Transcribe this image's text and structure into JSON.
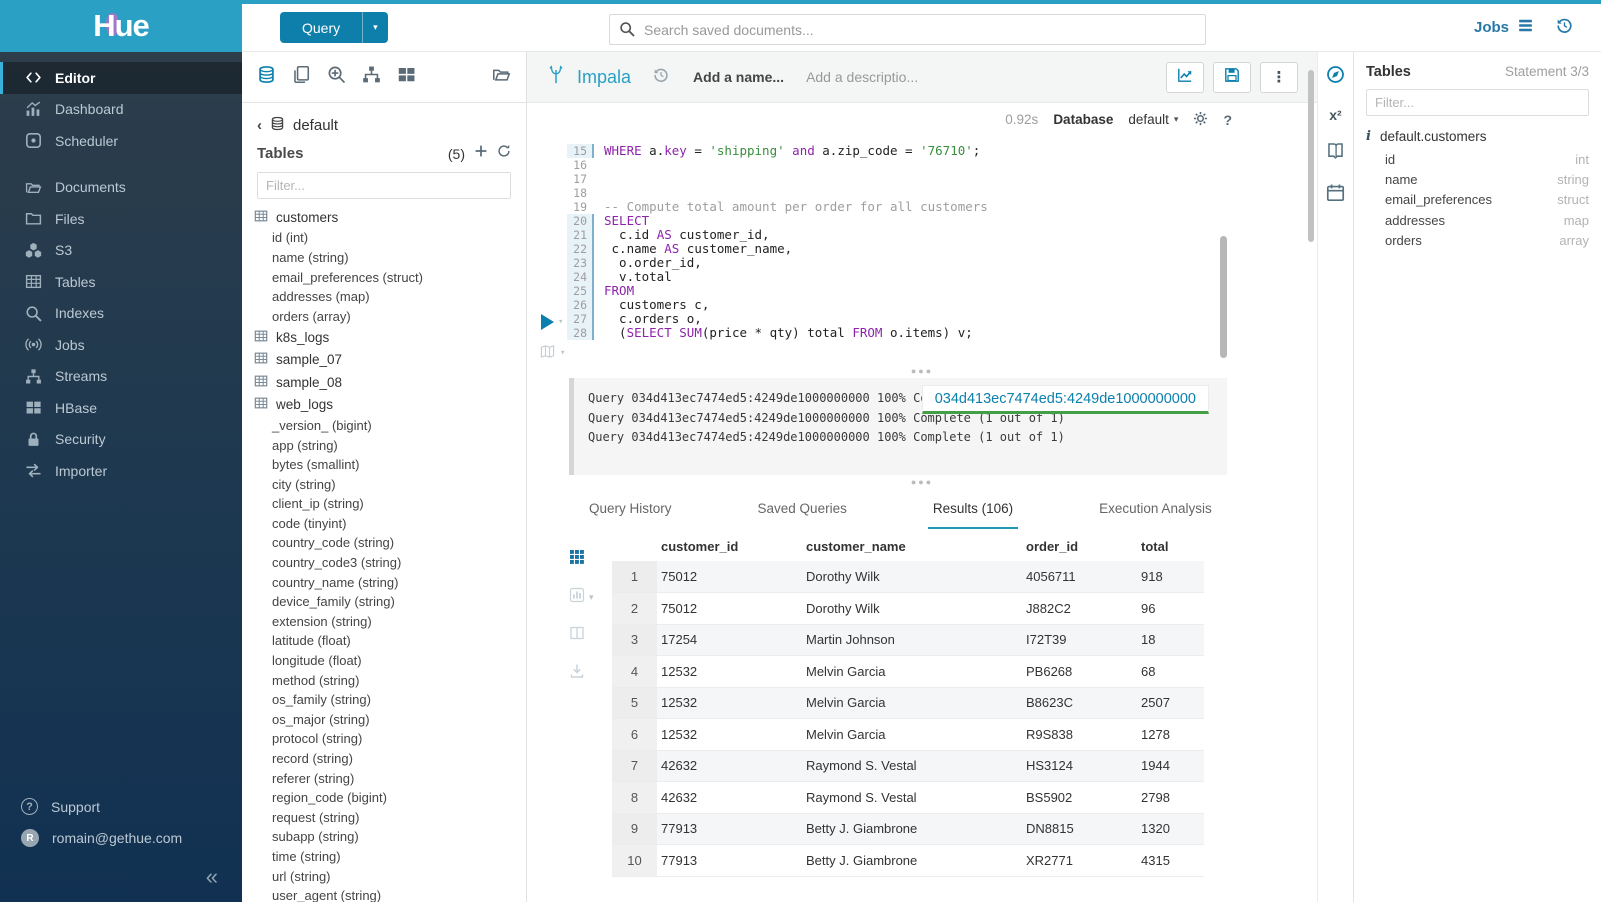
{
  "sidebar": {
    "logo_text": "Hue",
    "items": [
      {
        "label": "Editor",
        "icon": "code-icon",
        "active": true,
        "section": false
      },
      {
        "label": "Dashboard",
        "icon": "dashboard-icon",
        "active": false,
        "section": false
      },
      {
        "label": "Scheduler",
        "icon": "scheduler-icon",
        "active": false,
        "section": false
      },
      {
        "label": "Documents",
        "icon": "documents-icon",
        "active": false,
        "section": true
      },
      {
        "label": "Files",
        "icon": "files-icon",
        "active": false,
        "section": false
      },
      {
        "label": "S3",
        "icon": "s3-icon",
        "active": false,
        "section": false
      },
      {
        "label": "Tables",
        "icon": "tables-icon",
        "active": false,
        "section": false
      },
      {
        "label": "Indexes",
        "icon": "indexes-icon",
        "active": false,
        "section": false
      },
      {
        "label": "Jobs",
        "icon": "jobs-icon",
        "active": false,
        "section": false
      },
      {
        "label": "Streams",
        "icon": "streams-icon",
        "active": false,
        "section": false
      },
      {
        "label": "HBase",
        "icon": "hbase-icon",
        "active": false,
        "section": false
      },
      {
        "label": "Security",
        "icon": "security-icon",
        "active": false,
        "section": false
      },
      {
        "label": "Importer",
        "icon": "importer-icon",
        "active": false,
        "section": false
      }
    ],
    "footer": [
      {
        "label": "Support"
      },
      {
        "label": "romain@gethue.com",
        "avatar_letter": "R"
      }
    ]
  },
  "topbar": {
    "query_button": "Query",
    "search_placeholder": "Search saved documents...",
    "jobs_label": "Jobs"
  },
  "db_panel": {
    "breadcrumb": "default",
    "tables_label": "Tables",
    "count": "(5)",
    "filter_placeholder": "Filter...",
    "tables": [
      {
        "name": "customers",
        "columns": [
          "id (int)",
          "name (string)",
          "email_preferences (struct)",
          "addresses (map)",
          "orders (array)"
        ]
      },
      {
        "name": "k8s_logs",
        "columns": []
      },
      {
        "name": "sample_07",
        "columns": []
      },
      {
        "name": "sample_08",
        "columns": []
      },
      {
        "name": "web_logs",
        "columns": [
          "_version_ (bigint)",
          "app (string)",
          "bytes (smallint)",
          "city (string)",
          "client_ip (string)",
          "code (tinyint)",
          "country_code (string)",
          "country_code3 (string)",
          "country_name (string)",
          "device_family (string)",
          "extension (string)",
          "latitude (float)",
          "longitude (float)",
          "method (string)",
          "os_family (string)",
          "os_major (string)",
          "protocol (string)",
          "record (string)",
          "referer (string)",
          "region_code (bigint)",
          "request (string)",
          "subapp (string)",
          "time (string)",
          "url (string)",
          "user_agent (string)"
        ]
      }
    ]
  },
  "editor": {
    "engine": "Impala",
    "name_placeholder": "Add a name...",
    "description_placeholder": "Add a descriptio...",
    "exec_time": "0.92s",
    "database_label": "Database",
    "database_value": "default",
    "code": [
      {
        "n": "15",
        "stmt": true,
        "tokens": [
          [
            "kw",
            "WHERE"
          ],
          [
            "pl",
            " a."
          ],
          [
            "kw",
            "key"
          ],
          [
            "pl",
            " = "
          ],
          [
            "str",
            "'shipping'"
          ],
          [
            "kw",
            " and"
          ],
          [
            "pl",
            " a.zip_code = "
          ],
          [
            "str",
            "'76710'"
          ],
          [
            "pl",
            ";"
          ]
        ]
      },
      {
        "n": "16",
        "stmt": false,
        "tokens": []
      },
      {
        "n": "17",
        "stmt": false,
        "tokens": []
      },
      {
        "n": "18",
        "stmt": false,
        "tokens": []
      },
      {
        "n": "19",
        "stmt": false,
        "tokens": [
          [
            "cmt",
            "-- Compute total amount per order for all customers"
          ]
        ]
      },
      {
        "n": "20",
        "stmt": true,
        "tokens": [
          [
            "kw",
            "SELECT"
          ]
        ]
      },
      {
        "n": "21",
        "stmt": true,
        "tokens": [
          [
            "pl",
            "  c.id "
          ],
          [
            "kw",
            "AS"
          ],
          [
            "pl",
            " customer_id,"
          ]
        ]
      },
      {
        "n": "22",
        "stmt": true,
        "tokens": [
          [
            "pl",
            " c.name "
          ],
          [
            "kw",
            "AS"
          ],
          [
            "pl",
            " customer_name,"
          ]
        ]
      },
      {
        "n": "23",
        "stmt": true,
        "tokens": [
          [
            "pl",
            "  o.order_id,"
          ]
        ]
      },
      {
        "n": "24",
        "stmt": true,
        "tokens": [
          [
            "pl",
            "  v.total"
          ]
        ]
      },
      {
        "n": "25",
        "stmt": true,
        "tokens": [
          [
            "kw",
            "FROM"
          ]
        ]
      },
      {
        "n": "26",
        "stmt": true,
        "tokens": [
          [
            "pl",
            "  customers c,"
          ]
        ]
      },
      {
        "n": "27",
        "stmt": true,
        "tokens": [
          [
            "pl",
            "  c.orders o,"
          ]
        ]
      },
      {
        "n": "28",
        "stmt": true,
        "tokens": [
          [
            "pl",
            "  ("
          ],
          [
            "kw",
            "SELECT"
          ],
          [
            "pl",
            " "
          ],
          [
            "kw",
            "SUM"
          ],
          [
            "pl",
            "(price * qty) total "
          ],
          [
            "kw",
            "FROM"
          ],
          [
            "pl",
            " o.items) v;"
          ]
        ]
      }
    ],
    "logs": [
      "Query 034d413ec7474ed5:4249de1000000000 100% Complete (1 out of 1)",
      "Query 034d413ec7474ed5:4249de1000000000 100% Complete (1 out of 1)",
      "Query 034d413ec7474ed5:4249de1000000000 100% Complete (1 out of 1)"
    ],
    "log_tooltip": "034d413ec7474ed5:4249de1000000000"
  },
  "results": {
    "tabs": [
      {
        "label": "Query History",
        "active": false
      },
      {
        "label": "Saved Queries",
        "active": false
      },
      {
        "label": "Results (106)",
        "active": true
      },
      {
        "label": "Execution Analysis",
        "active": false
      }
    ],
    "columns": [
      "customer_id",
      "customer_name",
      "order_id",
      "total"
    ],
    "rows": [
      [
        "1",
        "75012",
        "Dorothy Wilk",
        "4056711",
        "918"
      ],
      [
        "2",
        "75012",
        "Dorothy Wilk",
        "J882C2",
        "96"
      ],
      [
        "3",
        "17254",
        "Martin Johnson",
        "I72T39",
        "18"
      ],
      [
        "4",
        "12532",
        "Melvin Garcia",
        "PB6268",
        "68"
      ],
      [
        "5",
        "12532",
        "Melvin Garcia",
        "B8623C",
        "2507"
      ],
      [
        "6",
        "12532",
        "Melvin Garcia",
        "R9S838",
        "1278"
      ],
      [
        "7",
        "42632",
        "Raymond S. Vestal",
        "HS3124",
        "1944"
      ],
      [
        "8",
        "42632",
        "Raymond S. Vestal",
        "BS5902",
        "2798"
      ],
      [
        "9",
        "77913",
        "Betty J. Giambrone",
        "DN8815",
        "1320"
      ],
      [
        "10",
        "77913",
        "Betty J. Giambrone",
        "XR2771",
        "4315"
      ]
    ]
  },
  "assist_panel": {
    "header": "Tables",
    "statement": "Statement 3/3",
    "filter_placeholder": "Filter...",
    "table_name": "default.customers",
    "columns": [
      {
        "name": "id",
        "type": "int"
      },
      {
        "name": "name",
        "type": "string"
      },
      {
        "name": "email_preferences",
        "type": "struct"
      },
      {
        "name": "addresses",
        "type": "map"
      },
      {
        "name": "orders",
        "type": "array"
      }
    ]
  }
}
